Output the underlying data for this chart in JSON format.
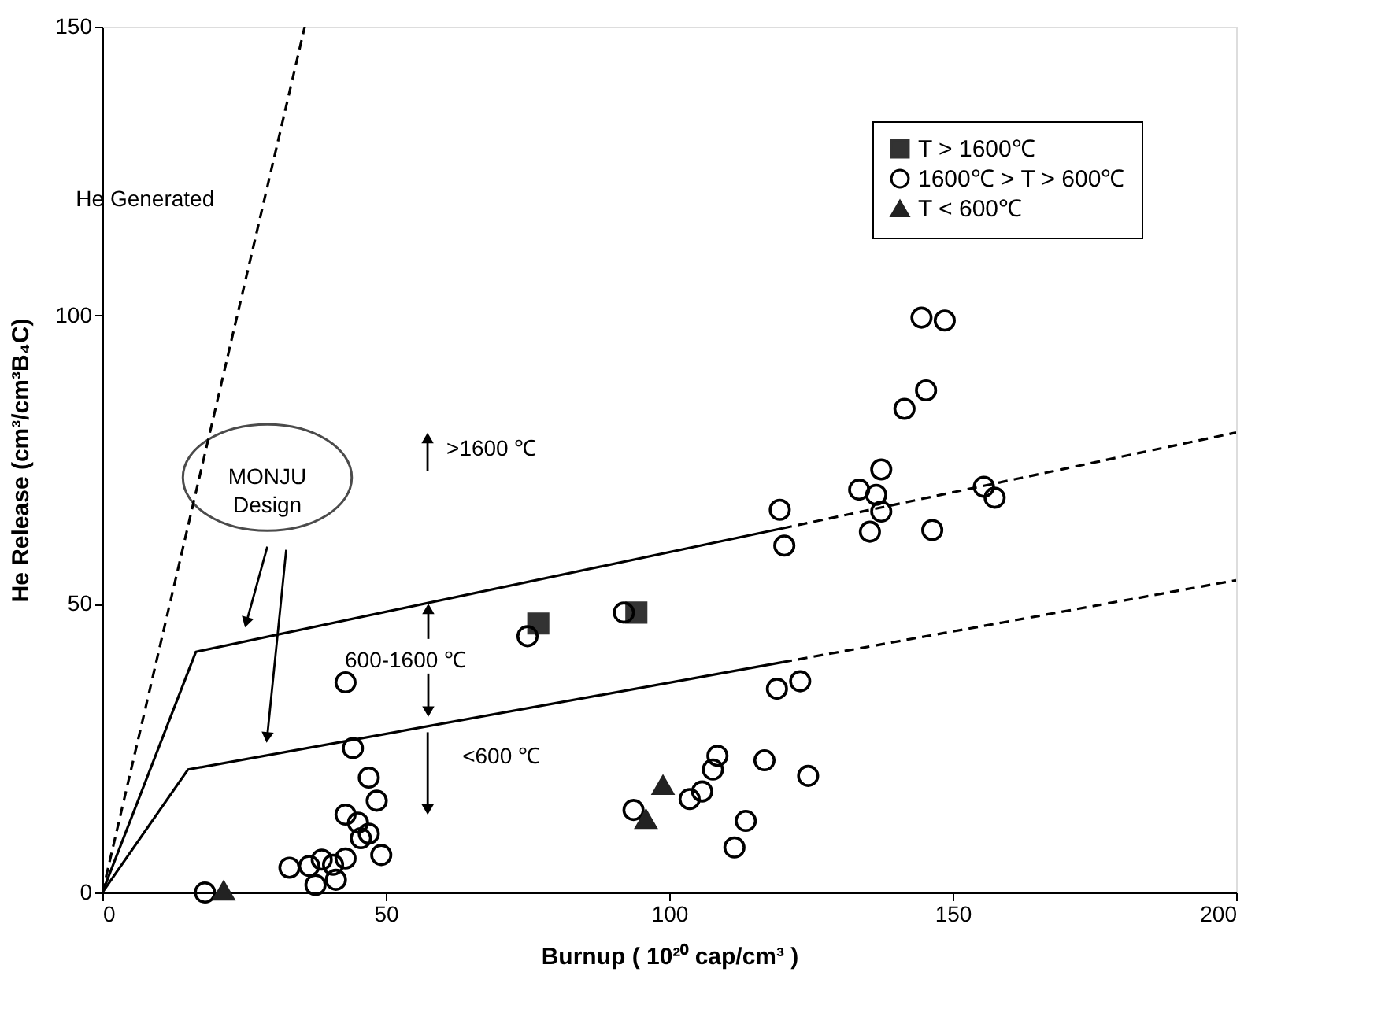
{
  "chart_data": {
    "type": "scatter",
    "xlabel": "Burnup ( 10²⁰ cap/cm³ )",
    "ylabel": "He Release (cm³/cm³B₄C)",
    "xlim": [
      0,
      200
    ],
    "xticks": [
      0,
      50,
      100,
      150,
      200
    ],
    "ylim": [
      0,
      150
    ],
    "yticks": [
      0,
      50,
      100,
      150
    ],
    "grid": false,
    "legend": "top right",
    "series": [
      {
        "name": "T > 1600℃",
        "color": "#333333",
        "marker": "square",
        "x": [
          76.9,
          94.2
        ],
        "values": [
          46.6,
          48.5
        ]
      },
      {
        "name": "1600℃ > T > 600℃",
        "color": "#000000",
        "marker": "circle",
        "x": [
          18.1,
          42.9,
          44.2,
          47.0,
          48.4,
          42.9,
          45.1,
          47.0,
          45.6,
          49.2,
          33.0,
          36.5,
          38.7,
          40.7,
          42.9,
          37.6,
          41.2,
          75.0,
          92.0,
          119.5,
          120.3,
          119.0,
          123.1,
          108.5,
          107.7,
          105.8,
          103.6,
          116.8,
          113.5,
          111.5,
          93.7,
          124.5,
          144.5,
          148.6,
          141.5,
          145.3,
          137.4,
          133.5,
          136.5,
          137.4,
          135.4,
          146.4,
          155.5,
          157.4
        ],
        "values": [
          0.0,
          36.4,
          25.0,
          19.9,
          15.9,
          13.5,
          12.1,
          10.2,
          9.4,
          6.5,
          4.3,
          4.6,
          5.7,
          4.8,
          5.9,
          1.3,
          2.2,
          44.4,
          48.5,
          66.3,
          60.1,
          35.3,
          36.6,
          23.7,
          21.3,
          17.5,
          16.2,
          22.9,
          12.4,
          7.8,
          14.3,
          20.2,
          99.6,
          99.1,
          83.8,
          87.0,
          73.3,
          69.8,
          68.9,
          66.0,
          62.5,
          62.8,
          70.3,
          68.4
        ]
      },
      {
        "name": "T < 600℃",
        "color": "#222222",
        "marker": "triangle",
        "x": [
          21.4,
          98.9,
          95.9
        ],
        "values": [
          0.3,
          18.6,
          12.7
        ]
      },
      {
        "name": "He Generated",
        "type": "line",
        "line_style": "dashed",
        "color": "#000000",
        "x": [
          0,
          35.7
        ],
        "values": [
          0,
          150
        ]
      },
      {
        "type": "line",
        "line_style": "solid",
        "color": "#000000",
        "x": [
          0,
          16.5,
          120
        ],
        "values": [
          0,
          41.7,
          63.1
        ]
      },
      {
        "type": "line",
        "line_style": "dashed",
        "color": "#000000",
        "x": [
          120,
          200
        ],
        "values": [
          63.1,
          79.7
        ]
      },
      {
        "type": "line",
        "line_style": "solid",
        "color": "#000000",
        "x": [
          0,
          15.1,
          120
        ],
        "values": [
          0,
          21.3,
          39.9
        ]
      },
      {
        "type": "line",
        "line_style": "dashed",
        "color": "#000000",
        "x": [
          120,
          200
        ],
        "values": [
          39.9,
          54.1
        ]
      }
    ],
    "annotations": [
      "MONJU Design",
      ">1600 ℃",
      {
        "text": "600-1600 ℃",
        "x": 57.5,
        "y": 50.2
      },
      "<600 ℃"
    ]
  }
}
